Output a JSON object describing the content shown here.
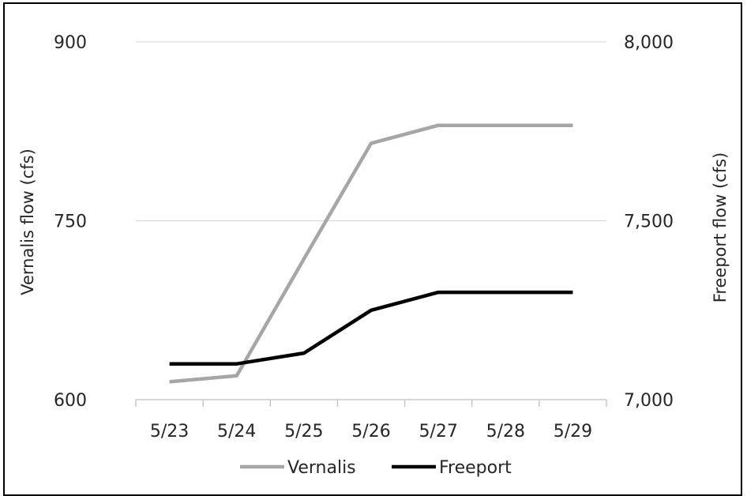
{
  "chart_data": {
    "type": "line",
    "categories": [
      "5/23",
      "5/24",
      "5/25",
      "5/26",
      "5/27",
      "5/28",
      "5/29"
    ],
    "ylabel": "Vernalis flow (cfs)",
    "y2label": "Freeport flow (cfs)",
    "ylim": [
      600,
      900
    ],
    "y2lim": [
      7000,
      8000
    ],
    "yticks": [
      "600",
      "750",
      "900"
    ],
    "y2ticks": [
      "7,000",
      "7,500",
      "8,000"
    ],
    "grid": true,
    "legend_position": "bottom",
    "series": [
      {
        "name": "Vernalis",
        "axis": "left",
        "color": "#a6a6a6",
        "x": [
          "5/23",
          "5/24",
          "5/25",
          "5/26",
          "5/27",
          "5/28",
          "5/29"
        ],
        "values": [
          615,
          620,
          718,
          815,
          830,
          830,
          830
        ]
      },
      {
        "name": "Freeport",
        "axis": "right",
        "color": "#000000",
        "x": [
          "5/23",
          "5/24",
          "5/25",
          "5/26",
          "5/27",
          "5/28",
          "5/29"
        ],
        "values": [
          7100,
          7100,
          7130,
          7250,
          7300,
          7300,
          7300
        ]
      }
    ]
  }
}
